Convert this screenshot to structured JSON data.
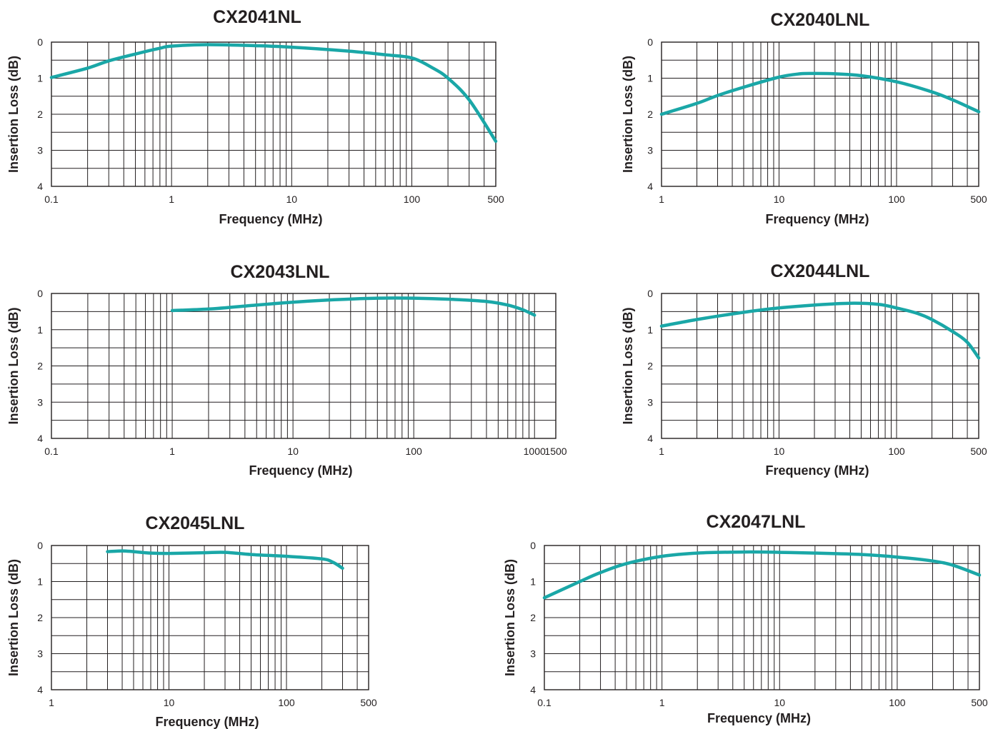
{
  "chart_data": [
    {
      "type": "line",
      "title": "CX2041NL",
      "xlabel": "Frequency (MHz)",
      "ylabel": "Insertion Loss (dB)",
      "x_scale": "log",
      "xlim": [
        0.1,
        500
      ],
      "ylim": [
        0,
        4
      ],
      "y_inverted": true,
      "grid": true,
      "x_tick_labels": [
        "0.1",
        "1",
        "10",
        "100",
        "500"
      ],
      "y_tick_labels": [
        "0",
        "1",
        "2",
        "3",
        "4"
      ],
      "series": [
        {
          "color": "#1aa7a7",
          "x": [
            0.1,
            0.2,
            0.3,
            0.5,
            0.8,
            1,
            2,
            5,
            10,
            30,
            60,
            100,
            150,
            200,
            300,
            500
          ],
          "y": [
            0.98,
            0.72,
            0.52,
            0.33,
            0.17,
            0.11,
            0.07,
            0.1,
            0.14,
            0.25,
            0.35,
            0.44,
            0.72,
            1.0,
            1.6,
            2.75
          ]
        }
      ]
    },
    {
      "type": "line",
      "title": "CX2040LNL",
      "xlabel": "Frequency (MHz)",
      "ylabel": "Insertion Loss (dB)",
      "x_scale": "log",
      "xlim": [
        1,
        500
      ],
      "ylim": [
        0,
        4
      ],
      "y_inverted": true,
      "grid": true,
      "x_tick_labels": [
        "1",
        "10",
        "100",
        "500"
      ],
      "y_tick_labels": [
        "0",
        "1",
        "2",
        "3",
        "4"
      ],
      "series": [
        {
          "color": "#1aa7a7",
          "x": [
            1,
            2,
            3,
            5,
            10,
            15,
            20,
            30,
            50,
            100,
            200,
            300,
            500
          ],
          "y": [
            2.0,
            1.7,
            1.48,
            1.25,
            0.97,
            0.88,
            0.87,
            0.88,
            0.93,
            1.1,
            1.38,
            1.6,
            1.93
          ]
        }
      ]
    },
    {
      "type": "line",
      "title": "CX2043LNL",
      "xlabel": "Frequency (MHz)",
      "ylabel": "Insertion Loss (dB)",
      "x_scale": "log",
      "xlim": [
        0.1,
        1500
      ],
      "ylim": [
        0,
        4
      ],
      "y_inverted": true,
      "grid": true,
      "x_tick_labels": [
        "0.1",
        "1",
        "10",
        "100",
        "1000",
        "1500"
      ],
      "y_tick_labels": [
        "0",
        "1",
        "2",
        "3",
        "4"
      ],
      "series": [
        {
          "color": "#1aa7a7",
          "x": [
            1,
            2,
            5,
            10,
            20,
            50,
            100,
            200,
            400,
            600,
            800,
            1000
          ],
          "y": [
            0.47,
            0.43,
            0.32,
            0.24,
            0.18,
            0.13,
            0.13,
            0.16,
            0.22,
            0.32,
            0.45,
            0.6
          ]
        }
      ]
    },
    {
      "type": "line",
      "title": "CX2044LNL",
      "xlabel": "Frequency (MHz)",
      "ylabel": "Insertion Loss (dB)",
      "x_scale": "log",
      "xlim": [
        1,
        500
      ],
      "ylim": [
        0,
        4
      ],
      "y_inverted": true,
      "grid": true,
      "x_tick_labels": [
        "1",
        "10",
        "100",
        "500"
      ],
      "y_tick_labels": [
        "0",
        "1",
        "2",
        "3",
        "4"
      ],
      "series": [
        {
          "color": "#1aa7a7",
          "x": [
            1,
            2,
            5,
            10,
            20,
            40,
            70,
            100,
            150,
            200,
            300,
            400,
            500
          ],
          "y": [
            0.9,
            0.72,
            0.52,
            0.4,
            0.32,
            0.27,
            0.3,
            0.4,
            0.55,
            0.72,
            1.05,
            1.35,
            1.78
          ]
        }
      ]
    },
    {
      "type": "line",
      "title": "CX2045LNL",
      "xlabel": "Frequency (MHz)",
      "ylabel": "Insertion Loss (dB)",
      "x_scale": "log",
      "xlim": [
        1,
        500
      ],
      "ylim": [
        0,
        4
      ],
      "y_inverted": true,
      "grid": true,
      "x_tick_labels": [
        "1",
        "10",
        "100",
        "500"
      ],
      "y_tick_labels": [
        "0",
        "1",
        "2",
        "3",
        "4"
      ],
      "series": [
        {
          "color": "#1aa7a7",
          "x": [
            3,
            4,
            5,
            7,
            10,
            20,
            30,
            50,
            100,
            200,
            250,
            300
          ],
          "y": [
            0.17,
            0.15,
            0.17,
            0.21,
            0.22,
            0.2,
            0.19,
            0.25,
            0.3,
            0.37,
            0.47,
            0.63
          ]
        }
      ]
    },
    {
      "type": "line",
      "title": "CX2047LNL",
      "xlabel": "Frequency (MHz)",
      "ylabel": "Insertion Loss (dB)",
      "x_scale": "log",
      "xlim": [
        0.1,
        500
      ],
      "ylim": [
        0,
        4
      ],
      "y_inverted": true,
      "grid": true,
      "x_tick_labels": [
        "0.1",
        "1",
        "10",
        "100",
        "500"
      ],
      "y_tick_labels": [
        "0",
        "1",
        "2",
        "3",
        "4"
      ],
      "series": [
        {
          "color": "#1aa7a7",
          "x": [
            0.1,
            0.2,
            0.3,
            0.5,
            1,
            2,
            5,
            10,
            20,
            50,
            100,
            200,
            300,
            500
          ],
          "y": [
            1.45,
            1.0,
            0.75,
            0.5,
            0.3,
            0.21,
            0.18,
            0.19,
            0.21,
            0.25,
            0.32,
            0.43,
            0.55,
            0.82
          ]
        }
      ]
    }
  ]
}
